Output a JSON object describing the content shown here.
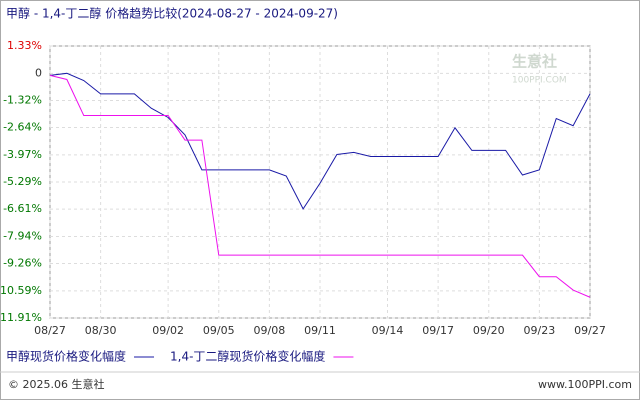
{
  "chart_data": {
    "type": "line",
    "title": "甲醇 - 1,4-丁二醇 价格趋势比较(2024-08-27 - 2024-09-27)",
    "watermark": "生意社",
    "watermark_sub": "100PPI.COM",
    "categories": [
      "08/27",
      null,
      null,
      "08/30",
      null,
      null,
      null,
      "09/02",
      null,
      null,
      "09/05",
      null,
      null,
      "09/08",
      null,
      null,
      "09/11",
      null,
      null,
      null,
      "09/14",
      null,
      null,
      "09/17",
      null,
      null,
      "09/20",
      null,
      null,
      "09/23",
      null,
      null,
      "09/27"
    ],
    "series": [
      {
        "name": "甲醇现货价格变化幅度",
        "color": "#1a1aa6",
        "values": [
          -0.1,
          0,
          -0.35,
          -1.0,
          -1.0,
          -1.0,
          -1.7,
          -2.15,
          -3.0,
          -4.7,
          -4.7,
          -4.7,
          -4.7,
          -4.7,
          -5.0,
          -6.6,
          -5.35,
          -3.95,
          -3.85,
          -4.05,
          -4.05,
          -4.05,
          -4.05,
          -4.05,
          -2.65,
          -3.75,
          -3.75,
          -3.75,
          -4.95,
          -4.7,
          -2.2,
          -2.55,
          -1.0
        ]
      },
      {
        "name": "1,4-丁二醇现货价格变化幅度",
        "color": "#ee11ee",
        "values": [
          -0.1,
          -0.3,
          -2.05,
          -2.05,
          -2.05,
          -2.05,
          -2.05,
          -2.05,
          -3.25,
          -3.25,
          -8.85,
          -8.85,
          -8.85,
          -8.85,
          -8.85,
          -8.85,
          -8.85,
          -8.85,
          -8.85,
          -8.85,
          -8.85,
          -8.85,
          -8.85,
          -8.85,
          -8.85,
          -8.85,
          -8.85,
          -8.85,
          -8.85,
          -9.9,
          -9.9,
          -10.55,
          -10.9
        ]
      }
    ],
    "ylim": [
      -11.91,
      1.33
    ],
    "yticks": [
      {
        "value": 1.33,
        "label": "1.33%"
      },
      0,
      {
        "value": -1.32,
        "label": "-1.32%"
      },
      {
        "value": -2.64,
        "label": "-2.64%"
      },
      {
        "value": -3.97,
        "label": "-3.97%"
      },
      {
        "value": -5.29,
        "label": "-5.29%"
      },
      {
        "value": -6.61,
        "label": "-6.61%"
      },
      {
        "value": -7.94,
        "label": "-7.94%"
      },
      {
        "value": -9.26,
        "label": "-9.26%"
      },
      {
        "value": -10.59,
        "label": "-10.59%"
      },
      {
        "value": -11.91,
        "label": "-11.91%"
      }
    ],
    "grid": true,
    "footer_left": "© 2025.06 生意社",
    "footer_right": "www.100PPI.com"
  }
}
